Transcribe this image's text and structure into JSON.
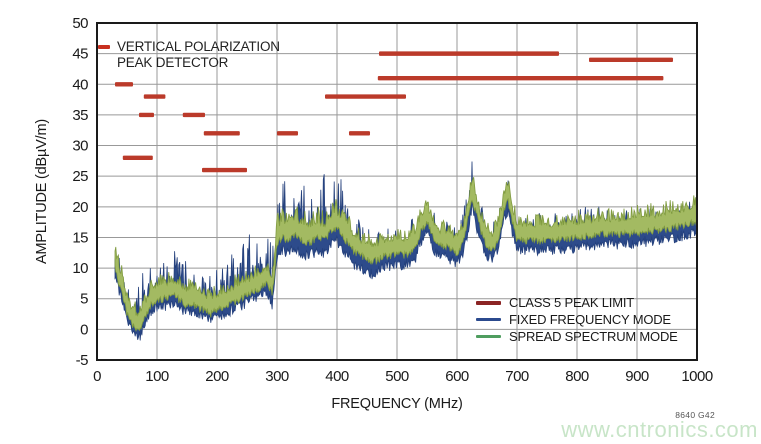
{
  "annotation": {
    "line1": "VERTICAL POLARIZATION",
    "line2": "PEAK DETECTOR",
    "marker_color": "#c8301f"
  },
  "legend": {
    "items": [
      {
        "label": "CLASS 5 PEAK LIMIT",
        "color": "#8b2424"
      },
      {
        "label": "FIXED FREQUENCY MODE",
        "color": "#2b4a8e"
      },
      {
        "label": "SPREAD SPECTRUM MODE",
        "color": "#4f9d5f"
      }
    ]
  },
  "footer": {
    "figure_ref": "8640 G42",
    "watermark": "www.cntronics.com"
  },
  "chart_data": {
    "type": "line",
    "title": "",
    "xlabel": "FREQUENCY (MHz)",
    "ylabel": "AMPLITUDE (dBµV/m)",
    "xlim": [
      0,
      1000
    ],
    "ylim": [
      -5,
      50
    ],
    "x_ticks": [
      0,
      100,
      200,
      300,
      400,
      500,
      600,
      700,
      800,
      900,
      1000
    ],
    "y_ticks": [
      50,
      45,
      40,
      35,
      30,
      25,
      20,
      15,
      10,
      5,
      0,
      -5
    ],
    "grid": true,
    "grid_color": "#999999",
    "border_color": "#1a1a1a",
    "limit_color": "#bb3a2a",
    "limit_segments": [
      {
        "from": 30,
        "to": 60,
        "level": 40
      },
      {
        "from": 43,
        "to": 93,
        "level": 28
      },
      {
        "from": 70,
        "to": 95,
        "level": 35
      },
      {
        "from": 78,
        "to": 114,
        "level": 38
      },
      {
        "from": 143,
        "to": 180,
        "level": 35
      },
      {
        "from": 178,
        "to": 238,
        "level": 32
      },
      {
        "from": 175,
        "to": 250,
        "level": 26
      },
      {
        "from": 300,
        "to": 335,
        "level": 32
      },
      {
        "from": 380,
        "to": 515,
        "level": 38
      },
      {
        "from": 420,
        "to": 455,
        "level": 32
      },
      {
        "from": 470,
        "to": 770,
        "level": 45
      },
      {
        "from": 468,
        "to": 944,
        "level": 41
      },
      {
        "from": 820,
        "to": 960,
        "level": 44
      }
    ],
    "noise_seed": 1337,
    "series": [
      {
        "name": "FIXED FREQUENCY MODE",
        "fill": "#2d4b8b",
        "stroke": "#24407c",
        "spike_exp": 3,
        "base_up": 1.0,
        "down_base": 1.2,
        "down_rand": 1.8,
        "mid": [
          [
            30,
            11
          ],
          [
            35,
            9
          ],
          [
            40,
            7.5
          ],
          [
            45,
            5.5
          ],
          [
            50,
            3.5
          ],
          [
            55,
            2.5
          ],
          [
            60,
            1.5
          ],
          [
            65,
            1
          ],
          [
            72,
            1
          ],
          [
            78,
            2.5
          ],
          [
            85,
            4
          ],
          [
            90,
            5
          ],
          [
            100,
            5.5
          ],
          [
            110,
            6
          ],
          [
            120,
            6
          ],
          [
            130,
            6.5
          ],
          [
            140,
            5.5
          ],
          [
            150,
            5
          ],
          [
            160,
            5
          ],
          [
            170,
            4.5
          ],
          [
            180,
            4
          ],
          [
            190,
            3.5
          ],
          [
            200,
            4
          ],
          [
            210,
            4.5
          ],
          [
            220,
            5
          ],
          [
            230,
            5.5
          ],
          [
            240,
            6
          ],
          [
            250,
            6.5
          ],
          [
            260,
            7
          ],
          [
            270,
            7.5
          ],
          [
            280,
            8.5
          ],
          [
            285,
            8
          ],
          [
            292,
            6
          ],
          [
            296,
            9
          ],
          [
            300,
            14
          ],
          [
            310,
            15
          ],
          [
            320,
            14.5
          ],
          [
            330,
            15.5
          ],
          [
            340,
            14.5
          ],
          [
            350,
            14
          ],
          [
            360,
            14.5
          ],
          [
            370,
            15
          ],
          [
            380,
            14.5
          ],
          [
            390,
            16
          ],
          [
            400,
            16.5
          ],
          [
            410,
            15
          ],
          [
            420,
            14
          ],
          [
            430,
            12.5
          ],
          [
            440,
            12
          ],
          [
            450,
            11.5
          ],
          [
            460,
            11
          ],
          [
            470,
            12
          ],
          [
            480,
            12.5
          ],
          [
            490,
            12.5
          ],
          [
            500,
            13
          ],
          [
            510,
            12.5
          ],
          [
            520,
            13
          ],
          [
            530,
            13.5
          ],
          [
            540,
            16.5
          ],
          [
            550,
            18
          ],
          [
            560,
            15.5
          ],
          [
            570,
            14
          ],
          [
            580,
            14
          ],
          [
            590,
            13.5
          ],
          [
            600,
            13
          ],
          [
            610,
            14.5
          ],
          [
            618,
            18
          ],
          [
            625,
            22
          ],
          [
            632,
            19
          ],
          [
            640,
            16.5
          ],
          [
            650,
            14
          ],
          [
            660,
            13.5
          ],
          [
            670,
            15.5
          ],
          [
            678,
            20
          ],
          [
            685,
            21.5
          ],
          [
            692,
            18
          ],
          [
            700,
            15
          ],
          [
            730,
            15
          ],
          [
            760,
            15
          ],
          [
            800,
            15.5
          ],
          [
            840,
            16
          ],
          [
            880,
            16
          ],
          [
            920,
            16.5
          ],
          [
            960,
            17
          ],
          [
            1000,
            18
          ]
        ],
        "spike_amp": [
          [
            30,
            6
          ],
          [
            40,
            5
          ],
          [
            50,
            4
          ],
          [
            60,
            4
          ],
          [
            70,
            6
          ],
          [
            80,
            11
          ],
          [
            90,
            7
          ],
          [
            100,
            6
          ],
          [
            120,
            6
          ],
          [
            150,
            6
          ],
          [
            170,
            5.5
          ],
          [
            190,
            5.5
          ],
          [
            210,
            6
          ],
          [
            230,
            7
          ],
          [
            240,
            8
          ],
          [
            260,
            8
          ],
          [
            280,
            7
          ],
          [
            295,
            8
          ],
          [
            300,
            10
          ],
          [
            330,
            10
          ],
          [
            360,
            10
          ],
          [
            390,
            10
          ],
          [
            410,
            9
          ],
          [
            425,
            7
          ],
          [
            440,
            5
          ],
          [
            460,
            4
          ],
          [
            480,
            4
          ],
          [
            500,
            4
          ],
          [
            530,
            4
          ],
          [
            545,
            3
          ],
          [
            560,
            4
          ],
          [
            580,
            4
          ],
          [
            600,
            4
          ],
          [
            615,
            5
          ],
          [
            625,
            5
          ],
          [
            640,
            4
          ],
          [
            660,
            4
          ],
          [
            680,
            3.5
          ],
          [
            700,
            4
          ],
          [
            750,
            4
          ],
          [
            800,
            4
          ],
          [
            850,
            4
          ],
          [
            900,
            4
          ],
          [
            950,
            4
          ],
          [
            1000,
            3.5
          ]
        ]
      },
      {
        "name": "SPREAD SPECTRUM MODE",
        "fill": "#a3ba62",
        "stroke": "#7f9a3f",
        "spike_exp": 2,
        "base_up": 0.6,
        "down_base": 1.4,
        "down_rand": 1.2,
        "mid": [
          [
            30,
            12
          ],
          [
            35,
            10
          ],
          [
            40,
            8.5
          ],
          [
            45,
            6.5
          ],
          [
            50,
            4.5
          ],
          [
            55,
            3.5
          ],
          [
            60,
            2.5
          ],
          [
            65,
            2
          ],
          [
            72,
            2
          ],
          [
            78,
            3.5
          ],
          [
            85,
            5
          ],
          [
            90,
            6
          ],
          [
            100,
            6.5
          ],
          [
            110,
            7
          ],
          [
            120,
            7
          ],
          [
            130,
            7.5
          ],
          [
            140,
            6.5
          ],
          [
            150,
            6
          ],
          [
            160,
            6
          ],
          [
            170,
            5.5
          ],
          [
            180,
            5
          ],
          [
            190,
            4.5
          ],
          [
            200,
            5
          ],
          [
            210,
            5.5
          ],
          [
            220,
            6
          ],
          [
            230,
            6.5
          ],
          [
            240,
            7
          ],
          [
            250,
            7.5
          ],
          [
            260,
            8
          ],
          [
            270,
            8.5
          ],
          [
            280,
            9.5
          ],
          [
            285,
            9
          ],
          [
            292,
            8
          ],
          [
            296,
            11
          ],
          [
            300,
            16
          ],
          [
            310,
            17
          ],
          [
            320,
            16.5
          ],
          [
            330,
            17.5
          ],
          [
            340,
            16.5
          ],
          [
            350,
            16
          ],
          [
            360,
            16.5
          ],
          [
            370,
            17
          ],
          [
            380,
            16.5
          ],
          [
            390,
            18
          ],
          [
            400,
            18.5
          ],
          [
            410,
            17
          ],
          [
            420,
            16
          ],
          [
            430,
            14.5
          ],
          [
            440,
            14
          ],
          [
            450,
            13.5
          ],
          [
            460,
            13
          ],
          [
            470,
            13.5
          ],
          [
            480,
            14
          ],
          [
            490,
            14
          ],
          [
            500,
            14.5
          ],
          [
            510,
            14
          ],
          [
            520,
            14.5
          ],
          [
            530,
            15
          ],
          [
            540,
            18
          ],
          [
            550,
            19.5
          ],
          [
            560,
            17
          ],
          [
            570,
            15.5
          ],
          [
            580,
            15.5
          ],
          [
            590,
            15
          ],
          [
            600,
            14.5
          ],
          [
            610,
            16
          ],
          [
            618,
            20
          ],
          [
            625,
            23.5
          ],
          [
            632,
            21
          ],
          [
            640,
            18
          ],
          [
            650,
            15.5
          ],
          [
            660,
            15
          ],
          [
            670,
            17
          ],
          [
            678,
            21.5
          ],
          [
            685,
            23
          ],
          [
            692,
            19.5
          ],
          [
            700,
            16.5
          ],
          [
            730,
            16.5
          ],
          [
            760,
            16.5
          ],
          [
            800,
            17
          ],
          [
            840,
            17.5
          ],
          [
            880,
            17.5
          ],
          [
            920,
            18
          ],
          [
            960,
            18.5
          ],
          [
            1000,
            19.5
          ]
        ],
        "spike_amp": [
          [
            30,
            2
          ],
          [
            295,
            2
          ],
          [
            300,
            3
          ],
          [
            425,
            2.5
          ],
          [
            460,
            2
          ],
          [
            600,
            2
          ],
          [
            1000,
            2.3
          ]
        ]
      }
    ]
  }
}
